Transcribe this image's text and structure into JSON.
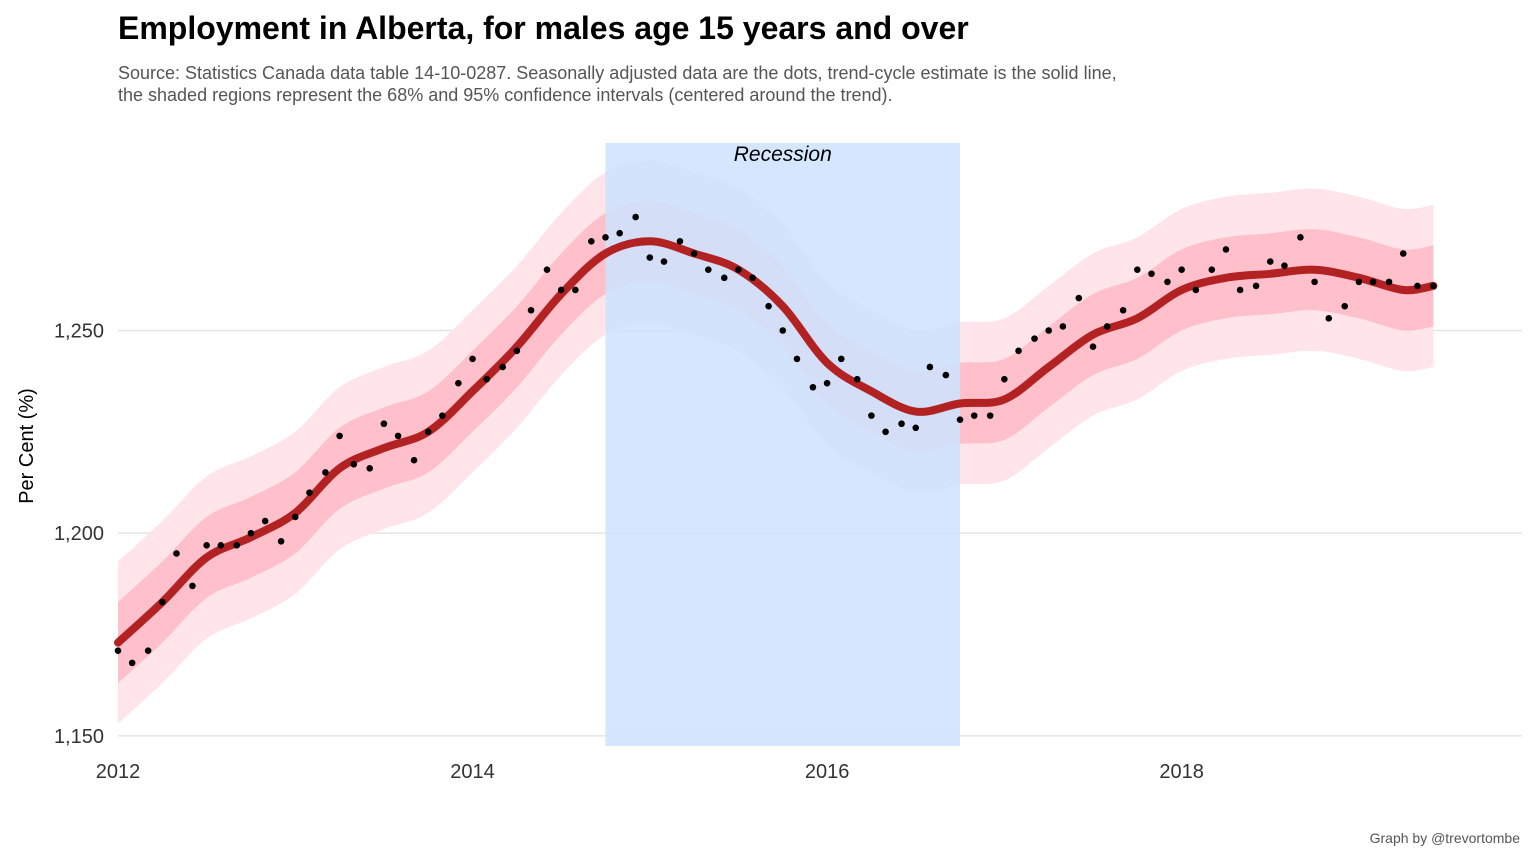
{
  "title": "Employment in Alberta, for males age 15 years and over",
  "subtitle_line1": "Source: Statistics Canada data table 14-10-0287. Seasonally adjusted data are the dots, trend-cycle estimate is the solid line,",
  "subtitle_line2": "the shaded regions represent the 68% and 95% confidence intervals (centered around the trend).",
  "caption": "Graph by @trevortombe",
  "chart_data": {
    "type": "line",
    "xlabel": "",
    "ylabel": "Per Cent (%)",
    "xlim": [
      2012.0,
      2019.92
    ],
    "ylim": [
      1147,
      1297
    ],
    "x_ticks": [
      2012,
      2014,
      2016,
      2018
    ],
    "x_tick_labels": [
      "2012",
      "2014",
      "2016",
      "2018"
    ],
    "y_ticks": [
      1150,
      1200,
      1250
    ],
    "y_tick_labels": [
      "1,150",
      "1,200",
      "1,250"
    ],
    "grid": "horizontal",
    "colors": {
      "trend": "#b22222",
      "ci68": "#ffc0cb",
      "ci95": "#ffe4e9",
      "points": "#000000",
      "recession": "#cce3ff",
      "grid": "#e5e5e5"
    },
    "recession": {
      "start": 2014.75,
      "end": 2016.75,
      "label": "Recession"
    },
    "ci68_halfwidth": 10,
    "ci95_halfwidth": 20,
    "trend": {
      "x": [
        2012.0,
        2012.25,
        2012.5,
        2012.75,
        2013.0,
        2013.25,
        2013.5,
        2013.75,
        2014.0,
        2014.25,
        2014.5,
        2014.75,
        2015.0,
        2015.25,
        2015.5,
        2015.75,
        2016.0,
        2016.25,
        2016.5,
        2016.75,
        2017.0,
        2017.25,
        2017.5,
        2017.75,
        2018.0,
        2018.25,
        2018.5,
        2018.75,
        2019.0,
        2019.25,
        2019.42
      ],
      "y": [
        1173,
        1183,
        1194,
        1199,
        1205,
        1216,
        1221,
        1225,
        1235,
        1246,
        1259,
        1269,
        1272,
        1269,
        1265,
        1256,
        1242,
        1235,
        1230,
        1232,
        1233,
        1241,
        1249,
        1253,
        1260,
        1263,
        1264,
        1265,
        1263,
        1260,
        1261
      ]
    },
    "points": {
      "x": [
        2012.0,
        2012.08,
        2012.17,
        2012.25,
        2012.33,
        2012.42,
        2012.5,
        2012.58,
        2012.67,
        2012.75,
        2012.83,
        2012.92,
        2013.0,
        2013.08,
        2013.17,
        2013.25,
        2013.33,
        2013.42,
        2013.5,
        2013.58,
        2013.67,
        2013.75,
        2013.83,
        2013.92,
        2014.0,
        2014.08,
        2014.17,
        2014.25,
        2014.33,
        2014.42,
        2014.5,
        2014.58,
        2014.67,
        2014.75,
        2014.83,
        2014.92,
        2015.0,
        2015.08,
        2015.17,
        2015.25,
        2015.33,
        2015.42,
        2015.5,
        2015.58,
        2015.67,
        2015.75,
        2015.83,
        2015.92,
        2016.0,
        2016.08,
        2016.17,
        2016.25,
        2016.33,
        2016.42,
        2016.5,
        2016.58,
        2016.67,
        2016.75,
        2016.83,
        2016.92,
        2017.0,
        2017.08,
        2017.17,
        2017.25,
        2017.33,
        2017.42,
        2017.5,
        2017.58,
        2017.67,
        2017.75,
        2017.83,
        2017.92,
        2018.0,
        2018.08,
        2018.17,
        2018.25,
        2018.33,
        2018.42,
        2018.5,
        2018.58,
        2018.67,
        2018.75,
        2018.83,
        2018.92,
        2019.0,
        2019.08,
        2019.17,
        2019.25,
        2019.33,
        2019.42
      ],
      "y": [
        1171,
        1168,
        1171,
        1183,
        1195,
        1187,
        1197,
        1197,
        1197,
        1200,
        1203,
        1198,
        1204,
        1210,
        1215,
        1224,
        1217,
        1216,
        1227,
        1224,
        1218,
        1225,
        1229,
        1237,
        1243,
        1238,
        1241,
        1245,
        1255,
        1265,
        1260,
        1260,
        1272,
        1273,
        1274,
        1278,
        1268,
        1267,
        1272,
        1269,
        1265,
        1263,
        1265,
        1263,
        1256,
        1250,
        1243,
        1236,
        1237,
        1243,
        1238,
        1229,
        1225,
        1227,
        1226,
        1241,
        1239,
        1228,
        1229,
        1229,
        1238,
        1245,
        1248,
        1250,
        1251,
        1258,
        1246,
        1251,
        1255,
        1265,
        1264,
        1262,
        1265,
        1260,
        1265,
        1270,
        1260,
        1261,
        1267,
        1266,
        1273,
        1262,
        1253,
        1256,
        1262,
        1262,
        1262,
        1269,
        1261,
        1261
      ]
    }
  }
}
